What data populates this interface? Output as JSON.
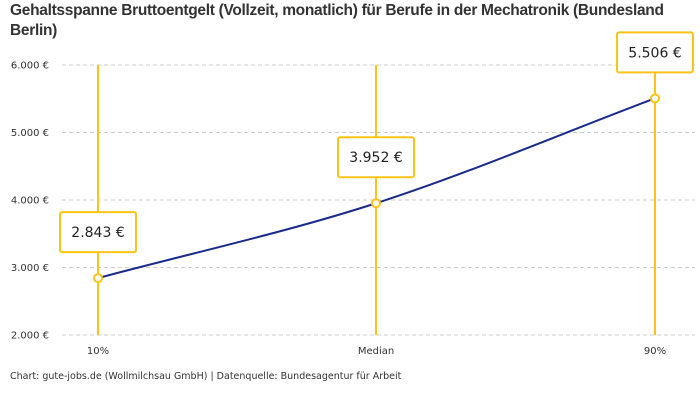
{
  "title": "Gehaltsspanne Bruttoentgelt (Vollzeit, monatlich) für Berufe in der Mechatronik (Bundesland Berlin)",
  "footer": "Chart: gute-jobs.de (Wollmilchsau GmbH) | Datenquelle: Bundesagentur für Arbeit",
  "colors": {
    "line": "#1a2a8c",
    "accent": "#fcc419",
    "grid": "#cccccc"
  },
  "chart_data": {
    "type": "line",
    "title": "Gehaltsspanne Bruttoentgelt (Vollzeit, monatlich) für Berufe in der Mechatronik (Bundesland Berlin)",
    "categories": [
      "10%",
      "Median",
      "90%"
    ],
    "values": [
      2843,
      3952,
      5506
    ],
    "data_labels": [
      "2.843 €",
      "3.952 €",
      "5.506 €"
    ],
    "ylim": [
      2000,
      6000
    ],
    "yticks": [
      2000,
      3000,
      4000,
      5000,
      6000
    ],
    "ytick_labels": [
      "2.000 €",
      "3.000 €",
      "4.000 €",
      "5.000 €",
      "6.000 €"
    ],
    "grid": true,
    "xlabel": "",
    "ylabel": ""
  }
}
